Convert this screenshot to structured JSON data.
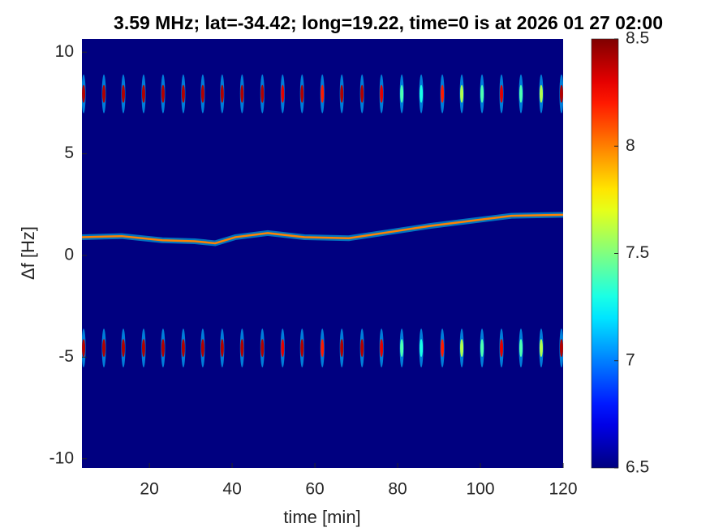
{
  "chart_data": {
    "type": "heatmap",
    "title": "3.59 MHz;  lat=-34.42; long=19.22, time=0 is at 2026 01 27 02:00",
    "x_label": "time [min]",
    "y_label": "Δf [Hz]",
    "xlim": [
      3.7,
      120
    ],
    "xticks": [
      20,
      40,
      60,
      80,
      100,
      120
    ],
    "ylim": [
      -10.45,
      10.65
    ],
    "yticks": [
      -10,
      -5,
      0,
      5,
      10
    ],
    "colormap": "jet",
    "clim": [
      6.5,
      8.5
    ],
    "cticks": [
      6.5,
      7,
      7.5,
      8,
      8.5
    ],
    "background_value": 6.5,
    "streak_freqs": [
      7.95,
      -4.55
    ],
    "streak_times": [
      4.1,
      9.0,
      13.7,
      18.6,
      23.3,
      28.2,
      32.9,
      37.6,
      42.4,
      47.3,
      52.2,
      56.9,
      61.8,
      66.5,
      71.4,
      76.1,
      81.0,
      85.7,
      90.8,
      95.5,
      100.4,
      105.1,
      109.8,
      114.7,
      119.6
    ],
    "streak_peaks": [
      8.4,
      8.4,
      8.4,
      8.4,
      8.4,
      8.4,
      8.4,
      8.4,
      8.4,
      8.4,
      8.3,
      8.4,
      8.2,
      8.4,
      8.4,
      8.3,
      7.4,
      7.3,
      8.2,
      7.6,
      7.4,
      8.3,
      7.4,
      7.6,
      8.4
    ],
    "trace_times": [
      3.7,
      13.3,
      23.1,
      31.0,
      35.9,
      40.8,
      48.6,
      57.5,
      68.2,
      78.0,
      87.8,
      97.6,
      107.5,
      120
    ],
    "trace_freqs": [
      0.9,
      0.95,
      0.75,
      0.7,
      0.6,
      0.9,
      1.1,
      0.9,
      0.85,
      1.15,
      1.45,
      1.7,
      1.95,
      2.0
    ],
    "trace_value": 8.0
  }
}
